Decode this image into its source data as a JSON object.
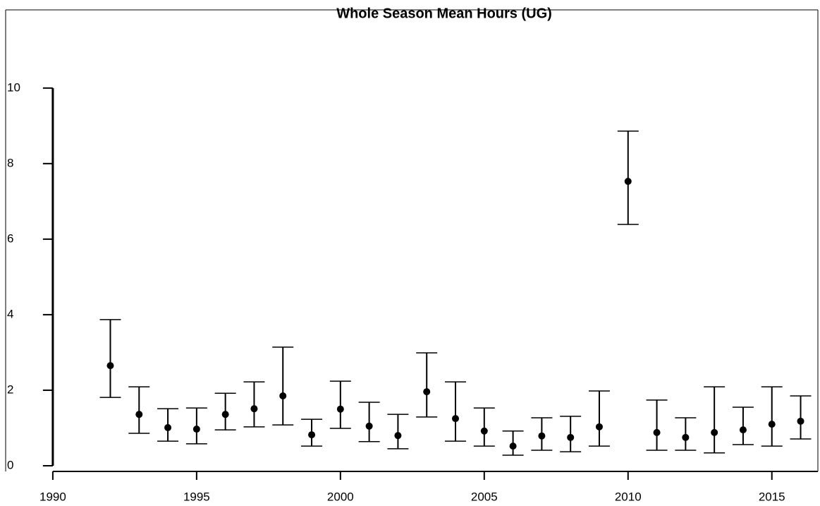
{
  "chart_data": {
    "type": "errorbar",
    "title": "Whole Season Mean Hours (UG)",
    "x": [
      1992,
      1993,
      1994,
      1995,
      1996,
      1997,
      1998,
      1999,
      2000,
      2001,
      2002,
      2003,
      2004,
      2005,
      2006,
      2007,
      2008,
      2009,
      2010,
      2011,
      2012,
      2013,
      2014,
      2015,
      2016
    ],
    "series": [
      {
        "color": "#000000",
        "values": [
          2.65,
          1.36,
          1.01,
          0.97,
          1.36,
          1.51,
          1.85,
          0.82,
          1.5,
          1.05,
          0.8,
          1.96,
          1.25,
          0.92,
          0.52,
          0.79,
          0.75,
          1.03,
          7.53,
          0.88,
          0.75,
          0.88,
          0.95,
          1.1,
          1.18
        ],
        "low": [
          1.81,
          0.86,
          0.65,
          0.58,
          0.95,
          1.03,
          1.08,
          0.52,
          0.99,
          0.64,
          0.45,
          1.29,
          0.65,
          0.52,
          0.28,
          0.41,
          0.37,
          0.52,
          6.39,
          0.41,
          0.41,
          0.34,
          0.56,
          0.52,
          0.71
        ],
        "high": [
          3.87,
          2.09,
          1.51,
          1.53,
          1.92,
          2.22,
          3.14,
          1.23,
          2.24,
          1.68,
          1.36,
          2.99,
          2.22,
          1.53,
          0.92,
          1.27,
          1.31,
          1.98,
          8.86,
          1.74,
          1.27,
          2.09,
          1.55,
          2.09,
          1.85
        ]
      }
    ],
    "xlim": [
      1988.36,
      2016.6
    ],
    "xticks": [
      1990,
      1995,
      2000,
      2005,
      2010,
      2015
    ],
    "ylim": [
      -0.15,
      12.07
    ],
    "yticks": [
      0,
      2,
      4,
      6,
      8,
      10
    ]
  }
}
